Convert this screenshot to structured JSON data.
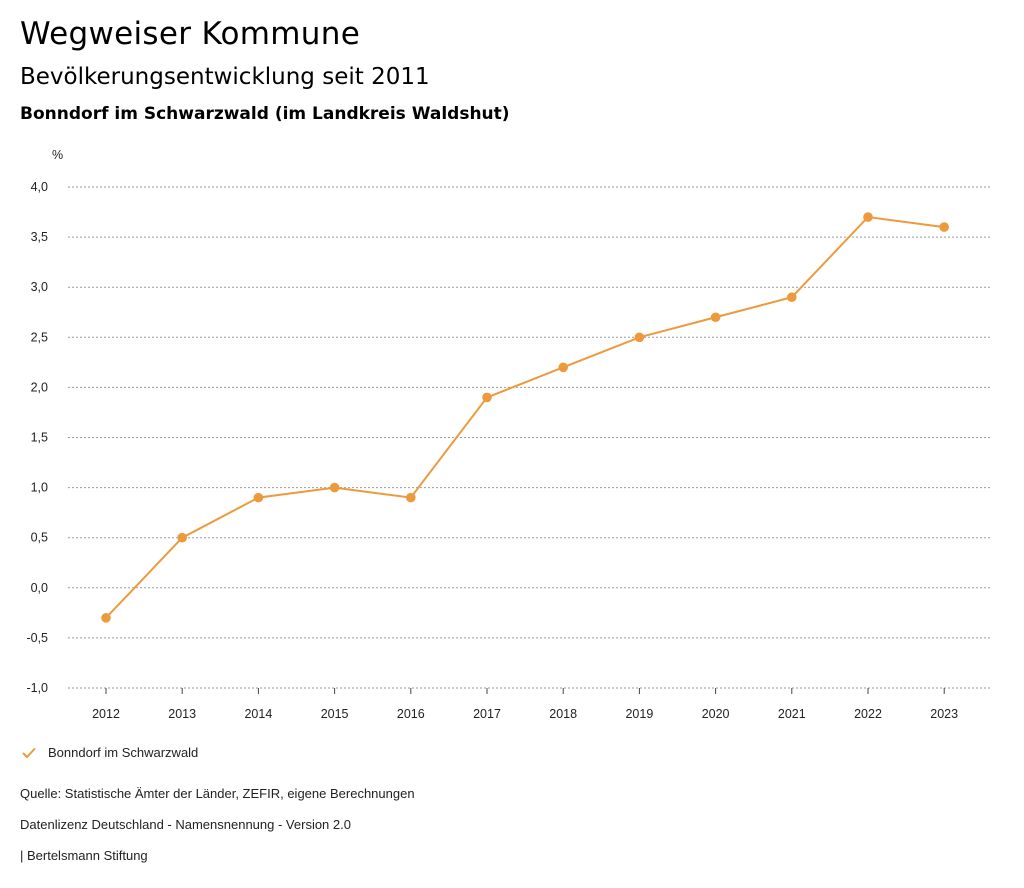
{
  "header": {
    "title": "Wegweiser Kommune",
    "subtitle": "Bevölkerungsentwicklung seit 2011",
    "region": "Bonndorf im Schwarzwald (im Landkreis Waldshut)"
  },
  "chart_data": {
    "type": "line",
    "title": "Bevölkerungsentwicklung seit 2011",
    "ylabel": "%",
    "xlabel": "",
    "x": [
      "2012",
      "2013",
      "2014",
      "2015",
      "2016",
      "2017",
      "2018",
      "2019",
      "2020",
      "2021",
      "2022",
      "2023"
    ],
    "series": [
      {
        "name": "Bonndorf im Schwarzwald",
        "color": "#ec9a3c",
        "values": [
          -0.3,
          0.5,
          0.9,
          1.0,
          0.9,
          1.9,
          2.2,
          2.5,
          2.7,
          2.9,
          3.7,
          3.6
        ]
      }
    ],
    "ylim": [
      -1.0,
      4.0
    ],
    "yticks": [
      -1.0,
      -0.5,
      0.0,
      0.5,
      1.0,
      1.5,
      2.0,
      2.5,
      3.0,
      3.5,
      4.0
    ],
    "ytick_labels": [
      "-1,0",
      "-0,5",
      "0,0",
      "0,5",
      "1,0",
      "1,5",
      "2,0",
      "2,5",
      "3,0",
      "3,5",
      "4,0"
    ],
    "grid": true,
    "legend": "bottom-left"
  },
  "legend": {
    "label": "Bonndorf im Schwarzwald",
    "icon": "check-icon"
  },
  "footer": {
    "source": "Quelle: Statistische Ämter der Länder, ZEFIR, eigene Berechnungen",
    "license": "Datenlizenz Deutschland - Namensnennung - Version 2.0",
    "publisher": "| Bertelsmann Stiftung"
  }
}
